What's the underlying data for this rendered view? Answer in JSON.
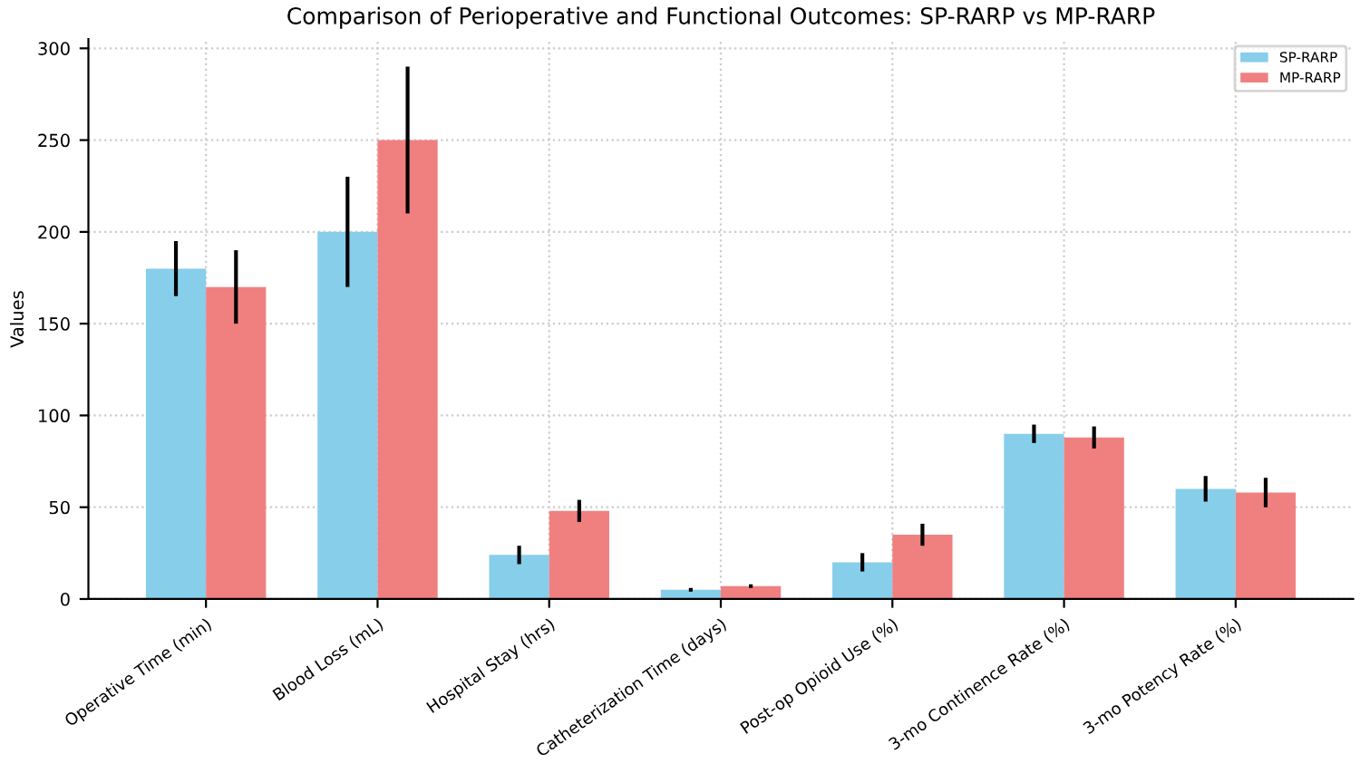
{
  "chart_data": {
    "type": "bar",
    "title": "Comparison of Perioperative and Functional Outcomes: SP-RARP vs MP-RARP",
    "ylabel": "Values",
    "categories": [
      "Operative Time (min)",
      "Blood Loss (mL)",
      "Hospital Stay (hrs)",
      "Catheterization Time (days)",
      "Post-op Opioid Use (%)",
      "3-mo Continence Rate (%)",
      "3-mo Potency Rate (%)"
    ],
    "series": [
      {
        "name": "SP-RARP",
        "color": "#87ceeb",
        "values": [
          180,
          200,
          24,
          5,
          20,
          90,
          60
        ],
        "errors": [
          15,
          30,
          5,
          1,
          5,
          5,
          7
        ]
      },
      {
        "name": "MP-RARP",
        "color": "#f08080",
        "values": [
          170,
          250,
          48,
          7,
          35,
          88,
          58
        ],
        "errors": [
          20,
          40,
          6,
          1,
          6,
          6,
          8
        ]
      }
    ],
    "ylim": [
      0,
      305
    ],
    "yticks": [
      0,
      50,
      100,
      150,
      200,
      250,
      300
    ],
    "grid": true,
    "legend": "top right"
  }
}
